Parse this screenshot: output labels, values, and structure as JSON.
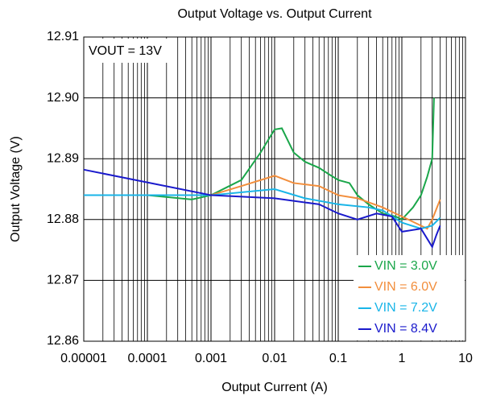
{
  "chart_data": {
    "type": "line",
    "title": "Output Voltage vs. Output Current",
    "x_label": "Output Current (A)",
    "y_label": "Output Voltage (V)",
    "annotation": "VOUT = 13V",
    "log_x": true,
    "grid": true,
    "legend": "lower right",
    "xlim": [
      1e-05,
      10
    ],
    "xticks": [
      {
        "value": 1e-05,
        "label": "0.00001"
      },
      0.0001,
      0.001,
      0.01,
      0.1,
      1,
      10
    ],
    "ylim": [
      12.86,
      12.91
    ],
    "yticks": [
      12.86,
      12.87,
      12.88,
      12.89,
      {
        "value": 12.9,
        "label": "12.90"
      },
      12.91
    ],
    "series": [
      {
        "name": "VIN = 3.0V",
        "color": "#1aa64a",
        "x": [
          1e-05,
          0.0001,
          0.0005,
          0.001,
          0.003,
          0.006,
          0.01,
          0.013,
          0.02,
          0.03,
          0.05,
          0.07,
          0.1,
          0.15,
          0.2,
          0.3,
          0.5,
          0.8,
          1,
          1.5,
          2,
          2.5,
          3,
          3.2
        ],
        "values": [
          12.884,
          12.884,
          12.8833,
          12.884,
          12.8865,
          12.891,
          12.8948,
          12.895,
          12.891,
          12.8895,
          12.8885,
          12.8875,
          12.8865,
          12.886,
          12.884,
          12.8825,
          12.881,
          12.8805,
          12.88,
          12.882,
          12.884,
          12.887,
          12.89,
          12.9
        ]
      },
      {
        "name": "VIN = 6.0V",
        "color": "#f28e3c",
        "x": [
          1e-05,
          0.001,
          0.003,
          0.01,
          0.02,
          0.05,
          0.1,
          0.2,
          0.5,
          1,
          2,
          2.5,
          3,
          4
        ],
        "values": [
          12.884,
          12.884,
          12.8855,
          12.8872,
          12.886,
          12.8855,
          12.884,
          12.8835,
          12.882,
          12.8805,
          12.879,
          12.8785,
          12.88,
          12.8833
        ]
      },
      {
        "name": "VIN = 7.2V",
        "color": "#19b5e8",
        "x": [
          1e-05,
          0.001,
          0.01,
          0.03,
          0.1,
          0.3,
          0.5,
          1,
          2,
          3,
          4
        ],
        "values": [
          12.884,
          12.884,
          12.885,
          12.8835,
          12.8825,
          12.882,
          12.8815,
          12.8795,
          12.8785,
          12.879,
          12.8803
        ]
      },
      {
        "name": "VIN = 8.4V",
        "color": "#1a1acc",
        "x": [
          1e-05,
          0.001,
          0.01,
          0.05,
          0.1,
          0.2,
          0.4,
          0.7,
          1,
          2,
          3,
          3.5,
          4
        ],
        "values": [
          12.8882,
          12.884,
          12.8835,
          12.8825,
          12.881,
          12.88,
          12.881,
          12.8805,
          12.878,
          12.8785,
          12.8755,
          12.8775,
          12.879
        ]
      }
    ]
  }
}
